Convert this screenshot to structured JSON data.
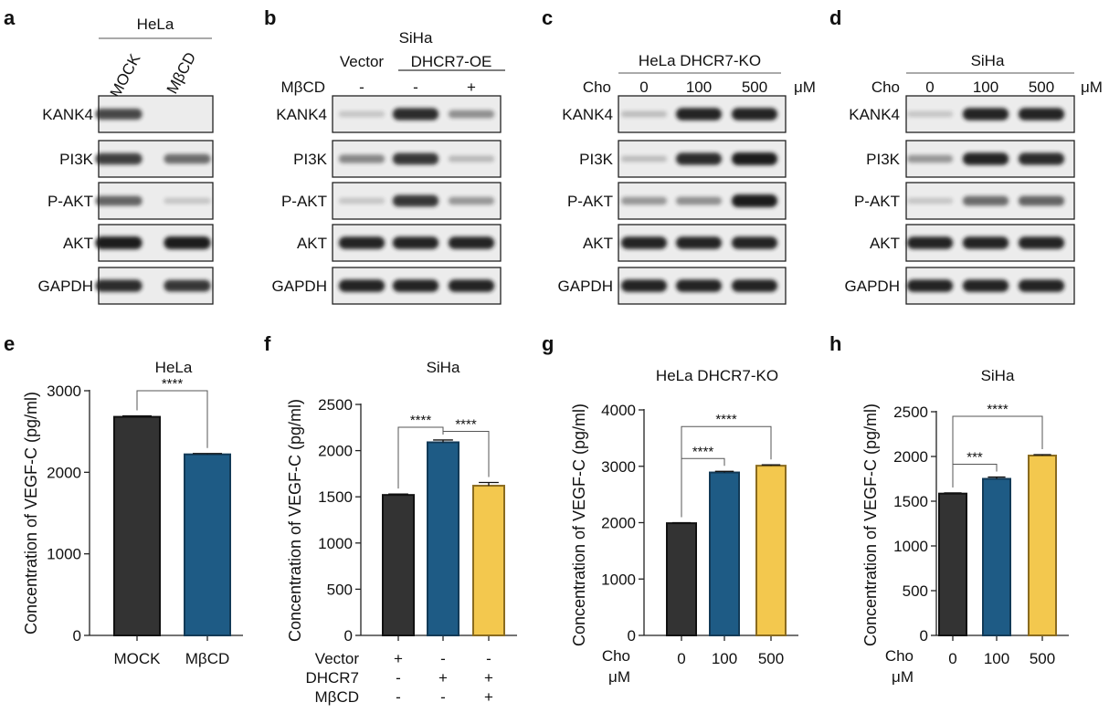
{
  "figure": {
    "blots": [
      {
        "panel": "a",
        "header": "HeLa",
        "subheader": "",
        "header_row_label": "",
        "header_unit": "",
        "lane_labels": [
          "MOCK",
          "MβCD"
        ],
        "rows": [
          {
            "label": "KANK4",
            "bands": [
              0.75,
              0.02
            ]
          },
          {
            "label": "PI3K",
            "bands": [
              0.8,
              0.55
            ]
          },
          {
            "label": "P-AKT",
            "bands": [
              0.6,
              0.05
            ]
          },
          {
            "label": "AKT",
            "bands": [
              1.0,
              1.0
            ]
          },
          {
            "label": "GAPDH",
            "bands": [
              0.9,
              0.85
            ]
          }
        ]
      },
      {
        "panel": "b",
        "header": "SiHa",
        "subheader": "DHCR7-OE",
        "vector_label": "Vector",
        "header_row_label": "MβCD",
        "header_unit": "",
        "lane_labels": [
          "-",
          "-",
          "+"
        ],
        "rows": [
          {
            "label": "KANK4",
            "bands": [
              0.05,
              0.9,
              0.35
            ]
          },
          {
            "label": "PI3K",
            "bands": [
              0.4,
              0.85,
              0.12
            ]
          },
          {
            "label": "P-AKT",
            "bands": [
              0.05,
              0.85,
              0.3
            ]
          },
          {
            "label": "AKT",
            "bands": [
              0.95,
              0.95,
              0.95
            ]
          },
          {
            "label": "GAPDH",
            "bands": [
              0.95,
              0.95,
              0.95
            ]
          }
        ]
      },
      {
        "panel": "c",
        "header": "HeLa DHCR7-KO",
        "subheader": "",
        "header_row_label": "Cho",
        "header_unit": "μM",
        "lane_labels": [
          "0",
          "100",
          "500"
        ],
        "rows": [
          {
            "label": "KANK4",
            "bands": [
              0.1,
              0.95,
              0.95
            ]
          },
          {
            "label": "PI3K",
            "bands": [
              0.1,
              0.9,
              1.0
            ]
          },
          {
            "label": "P-AKT",
            "bands": [
              0.3,
              0.35,
              1.0
            ]
          },
          {
            "label": "AKT",
            "bands": [
              0.95,
              0.95,
              0.95
            ]
          },
          {
            "label": "GAPDH",
            "bands": [
              0.95,
              0.95,
              0.95
            ]
          }
        ]
      },
      {
        "panel": "d",
        "header": "SiHa",
        "subheader": "",
        "header_row_label": "Cho",
        "header_unit": "μM",
        "lane_labels": [
          "0",
          "100",
          "500"
        ],
        "rows": [
          {
            "label": "KANK4",
            "bands": [
              0.05,
              0.95,
              0.95
            ]
          },
          {
            "label": "PI3K",
            "bands": [
              0.3,
              0.95,
              0.9
            ]
          },
          {
            "label": "P-AKT",
            "bands": [
              0.05,
              0.55,
              0.6
            ]
          },
          {
            "label": "AKT",
            "bands": [
              0.95,
              0.95,
              0.95
            ]
          },
          {
            "label": "GAPDH",
            "bands": [
              0.95,
              0.95,
              0.95
            ]
          }
        ]
      }
    ]
  },
  "chart_data": [
    {
      "panel": "e",
      "type": "bar",
      "title": "HeLa",
      "ylabel": "Concentration of VEGF-C (pg/ml)",
      "ylim": [
        0,
        3000
      ],
      "yticks": [
        0,
        1000,
        2000,
        3000
      ],
      "categories": [
        "MOCK",
        "MβCD"
      ],
      "values": [
        2680,
        2220
      ],
      "errors": [
        12,
        10
      ],
      "colors": [
        "#333333",
        "#1e5b85"
      ],
      "significance": [
        {
          "from": 0,
          "to": 1,
          "label": "****"
        }
      ]
    },
    {
      "panel": "f",
      "type": "bar",
      "title": "SiHa",
      "ylabel": "Concentration of VEGF-C (pg/ml)",
      "ylim": [
        0,
        2500
      ],
      "yticks": [
        0,
        500,
        1000,
        1500,
        2000,
        2500
      ],
      "categories": [
        "",
        "",
        ""
      ],
      "values": [
        1520,
        2090,
        1620
      ],
      "errors": [
        10,
        25,
        35
      ],
      "colors": [
        "#333333",
        "#1e5b85",
        "#f3c84e"
      ],
      "treatment_rows": [
        {
          "label": "Vector",
          "marks": [
            "+",
            "-",
            "-"
          ]
        },
        {
          "label": "DHCR7",
          "marks": [
            "-",
            "+",
            "+"
          ]
        },
        {
          "label": "MβCD",
          "marks": [
            "-",
            "-",
            "+"
          ]
        }
      ],
      "significance": [
        {
          "from": 0,
          "to": 1,
          "label": "****"
        },
        {
          "from": 1,
          "to": 2,
          "label": "****"
        }
      ]
    },
    {
      "panel": "g",
      "type": "bar",
      "title": "HeLa DHCR7-KO",
      "ylabel": "Concentration of VEGF-C (pg/ml)",
      "ylim": [
        0,
        4000
      ],
      "yticks": [
        0,
        1000,
        2000,
        3000,
        4000
      ],
      "categories": [
        "0",
        "100",
        "500"
      ],
      "values": [
        1990,
        2890,
        3010
      ],
      "errors": [
        10,
        20,
        15
      ],
      "colors": [
        "#333333",
        "#1e5b85",
        "#f3c84e"
      ],
      "xaxis_label": "Cho",
      "xaxis_unit": "μM",
      "significance": [
        {
          "from": 0,
          "to": 1,
          "label": "****"
        },
        {
          "from": 0,
          "to": 2,
          "label": "****"
        }
      ]
    },
    {
      "panel": "h",
      "type": "bar",
      "title": "SiHa",
      "ylabel": "Concentration of VEGF-C (pg/ml)",
      "ylim": [
        0,
        2500
      ],
      "yticks": [
        0,
        500,
        1000,
        1500,
        2000,
        2500
      ],
      "categories": [
        "0",
        "100",
        "500"
      ],
      "values": [
        1585,
        1750,
        2010
      ],
      "errors": [
        8,
        20,
        10
      ],
      "colors": [
        "#333333",
        "#1e5b85",
        "#f3c84e"
      ],
      "xaxis_label": "Cho",
      "xaxis_unit": "μM",
      "significance": [
        {
          "from": 0,
          "to": 1,
          "label": "***"
        },
        {
          "from": 0,
          "to": 2,
          "label": "****"
        }
      ]
    }
  ]
}
